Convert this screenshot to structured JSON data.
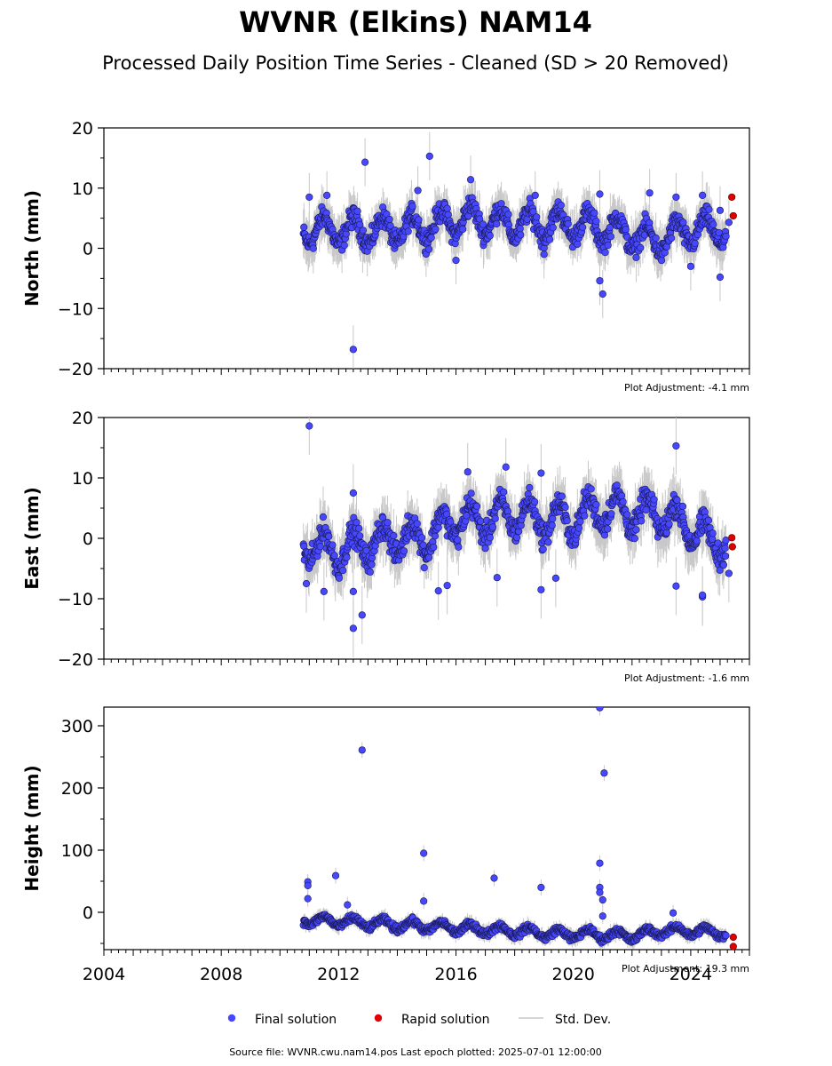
{
  "title": "WVNR (Elkins) NAM14",
  "subtitle": "Processed Daily Position Time Series - Cleaned (SD > 20 Removed)",
  "legend": {
    "final": "Final solution",
    "rapid": "Rapid solution",
    "std": "Std. Dev."
  },
  "footer": "Source file: WVNR.cwu.nam14.pos  Last epoch plotted: 2025-07-01 12:00:00",
  "colors": {
    "final": "#4747ff",
    "rapid": "#e00000",
    "std": "#c8c8c8"
  },
  "chart_data": [
    {
      "type": "scatter",
      "ylabel": "North (mm)",
      "adjustment": "Plot Adjustment: -4.1 mm",
      "xlim": [
        2004,
        2026
      ],
      "ylim": [
        -20,
        20
      ],
      "yticks": [
        20,
        10,
        0,
        -10,
        -20
      ],
      "ytick_labels": [
        "20",
        "10",
        "0",
        "−10",
        "−20"
      ],
      "show_x_labels": false,
      "trend": [
        [
          2010.8,
          3.0
        ],
        [
          2012.0,
          3.0
        ],
        [
          2014.0,
          3.0
        ],
        [
          2015.5,
          4.0
        ],
        [
          2016.5,
          5.0
        ],
        [
          2018.0,
          4.0
        ],
        [
          2020.0,
          4.0
        ],
        [
          2021.5,
          3.0
        ],
        [
          2022.7,
          1.0
        ],
        [
          2024.0,
          3.0
        ],
        [
          2025.2,
          3.0
        ]
      ],
      "spread": 2.5,
      "outliers": [
        [
          2011.0,
          8.5
        ],
        [
          2011.6,
          8.8
        ],
        [
          2012.5,
          -16.8
        ],
        [
          2012.9,
          14.3
        ],
        [
          2014.7,
          9.6
        ],
        [
          2015.1,
          15.3
        ],
        [
          2016.5,
          11.4
        ],
        [
          2016.0,
          -2.0
        ],
        [
          2020.9,
          -5.4
        ],
        [
          2021.0,
          -7.6
        ],
        [
          2020.9,
          9.0
        ],
        [
          2022.6,
          9.2
        ],
        [
          2023.5,
          8.5
        ],
        [
          2024.4,
          8.8
        ],
        [
          2025.0,
          -4.8
        ],
        [
          2024.0,
          -3.0
        ],
        [
          2025.0,
          6.3
        ],
        [
          2025.3,
          4.3
        ],
        [
          2018.7,
          8.8
        ],
        [
          2019.0,
          -1.0
        ]
      ],
      "rapid": [
        [
          2025.4,
          8.5
        ],
        [
          2025.45,
          5.4
        ]
      ]
    },
    {
      "type": "scatter",
      "ylabel": "East (mm)",
      "adjustment": "Plot Adjustment: -1.6 mm",
      "xlim": [
        2004,
        2026
      ],
      "ylim": [
        -20,
        20
      ],
      "yticks": [
        20,
        10,
        0,
        -10,
        -20
      ],
      "ytick_labels": [
        "20",
        "10",
        "0",
        "−10",
        "−20"
      ],
      "show_x_labels": false,
      "trend": [
        [
          2010.8,
          -1.0
        ],
        [
          2012.0,
          -2.0
        ],
        [
          2013.0,
          -1.0
        ],
        [
          2014.0,
          0.0
        ],
        [
          2015.0,
          0.0
        ],
        [
          2016.0,
          3.0
        ],
        [
          2017.0,
          3.0
        ],
        [
          2018.0,
          4.0
        ],
        [
          2019.0,
          3.0
        ],
        [
          2020.0,
          3.0
        ],
        [
          2021.0,
          5.0
        ],
        [
          2022.0,
          4.0
        ],
        [
          2023.0,
          4.0
        ],
        [
          2024.0,
          2.0
        ],
        [
          2024.7,
          -1.0
        ],
        [
          2025.2,
          0.0
        ]
      ],
      "spread": 3.0,
      "outliers": [
        [
          2011.0,
          18.6
        ],
        [
          2012.5,
          -14.9
        ],
        [
          2012.8,
          -12.7
        ],
        [
          2012.5,
          7.5
        ],
        [
          2012.5,
          -8.8
        ],
        [
          2015.4,
          -8.7
        ],
        [
          2015.7,
          -7.8
        ],
        [
          2016.4,
          11.0
        ],
        [
          2017.7,
          11.8
        ],
        [
          2018.9,
          10.8
        ],
        [
          2018.9,
          -8.5
        ],
        [
          2019.4,
          -6.6
        ],
        [
          2023.5,
          15.3
        ],
        [
          2023.5,
          -7.9
        ],
        [
          2024.4,
          -9.7
        ],
        [
          2024.4,
          -9.4
        ],
        [
          2025.3,
          -5.8
        ],
        [
          2011.5,
          -8.8
        ],
        [
          2010.9,
          -7.5
        ],
        [
          2017.4,
          -6.5
        ]
      ],
      "rapid": [
        [
          2025.4,
          0.1
        ],
        [
          2025.42,
          -1.4
        ]
      ]
    },
    {
      "type": "scatter",
      "ylabel": "Height (mm)",
      "adjustment": "Plot Adjustment: 19.3 mm",
      "xlim": [
        2004,
        2026
      ],
      "ylim": [
        -60,
        330
      ],
      "yticks": [
        300,
        200,
        100,
        0
      ],
      "ytick_labels": [
        "300",
        "200",
        "100",
        "0"
      ],
      "show_x_labels": true,
      "xticks": [
        2004,
        2008,
        2012,
        2016,
        2020,
        2024
      ],
      "xtick_labels": [
        "2004",
        "2008",
        "2012",
        "2016",
        "2020",
        "2024"
      ],
      "trend": [
        [
          2010.8,
          -12.0
        ],
        [
          2012.0,
          -15.0
        ],
        [
          2014.0,
          -20.0
        ],
        [
          2016.0,
          -25.0
        ],
        [
          2018.0,
          -30.0
        ],
        [
          2019.5,
          -35.0
        ],
        [
          2020.5,
          -35.0
        ],
        [
          2022.0,
          -38.0
        ],
        [
          2023.0,
          -30.0
        ],
        [
          2024.0,
          -30.0
        ],
        [
          2025.2,
          -33.0
        ]
      ],
      "spread": 8.0,
      "outliers": [
        [
          2010.95,
          49.0
        ],
        [
          2010.95,
          43.0
        ],
        [
          2010.95,
          22.0
        ],
        [
          2011.9,
          59.0
        ],
        [
          2012.8,
          261.0
        ],
        [
          2014.9,
          95.0
        ],
        [
          2014.9,
          18.0
        ],
        [
          2017.3,
          55.0
        ],
        [
          2018.9,
          40.0
        ],
        [
          2020.9,
          329.0
        ],
        [
          2021.05,
          224.0
        ],
        [
          2020.9,
          79.0
        ],
        [
          2020.9,
          40.0
        ],
        [
          2020.9,
          32.0
        ],
        [
          2021.0,
          20.0
        ],
        [
          2012.3,
          12.0
        ],
        [
          2021.0,
          -6.0
        ],
        [
          2023.4,
          -1.0
        ]
      ],
      "rapid": [
        [
          2025.45,
          -40.0
        ],
        [
          2025.45,
          -55.0
        ]
      ]
    }
  ]
}
